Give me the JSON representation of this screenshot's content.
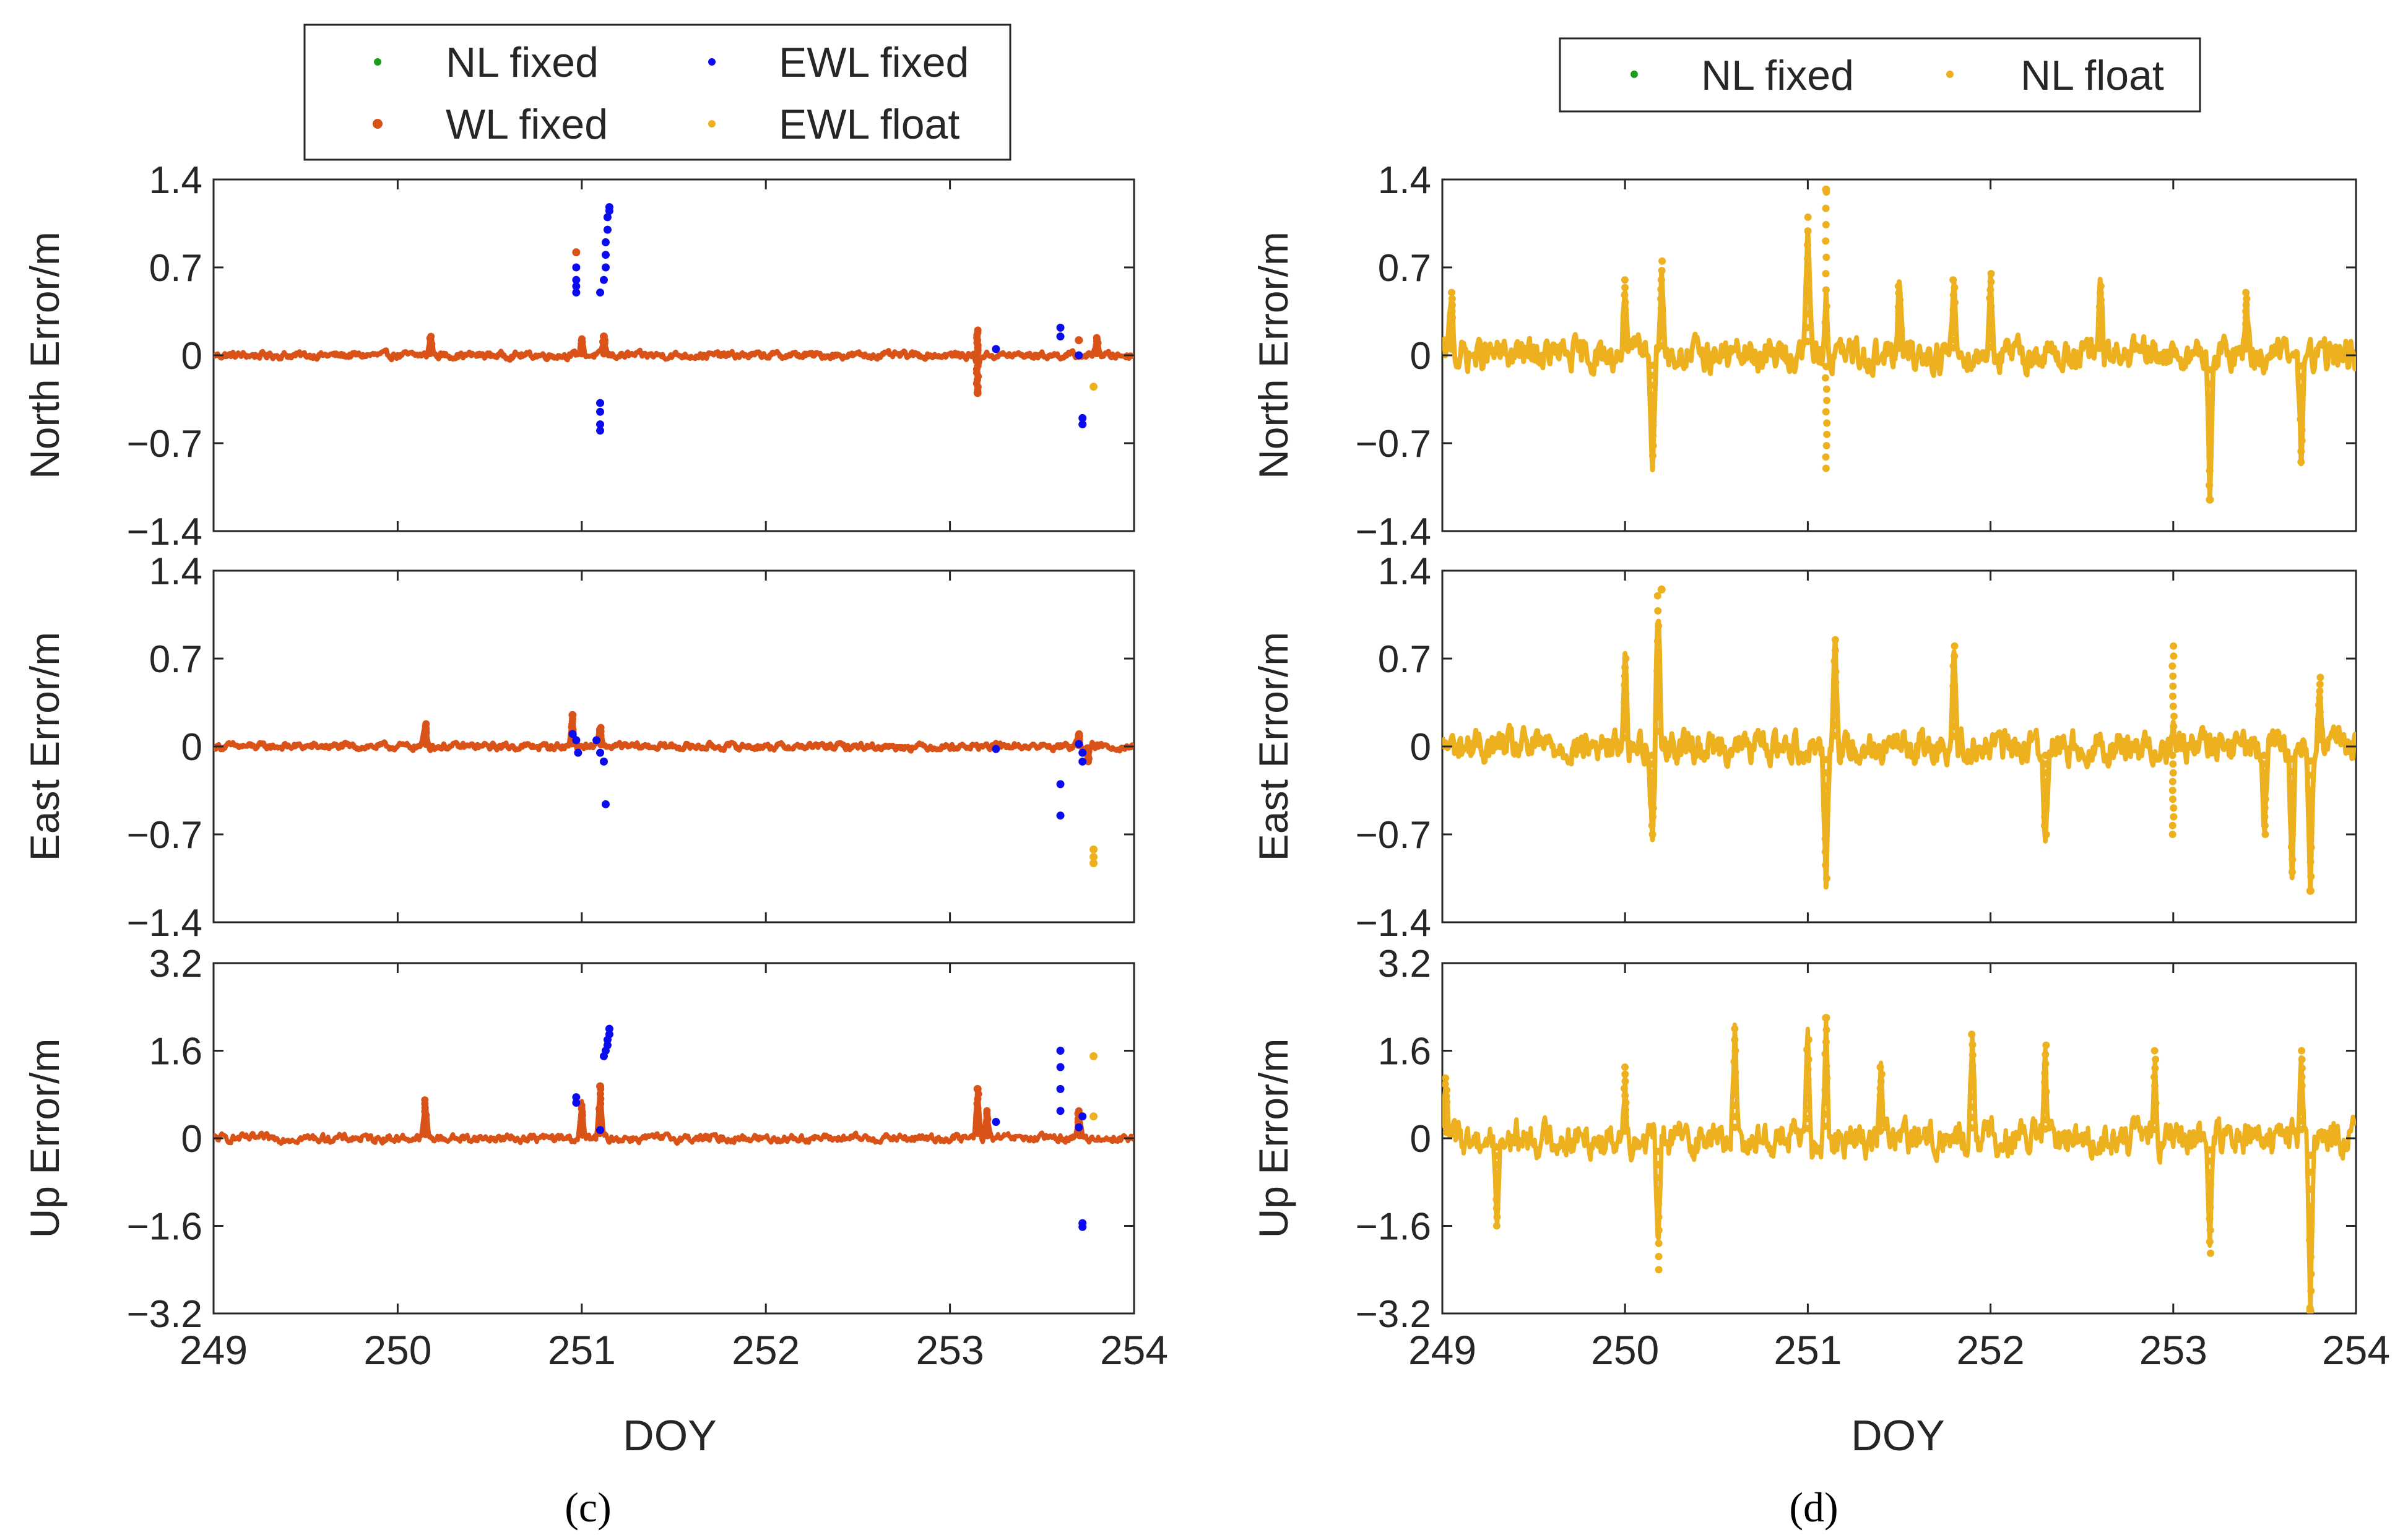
{
  "figure": {
    "xlabel": "DOY",
    "panel_labels": [
      "(c)",
      "(d)"
    ]
  },
  "colors": {
    "nl_fixed": "#1a9e1a",
    "wl_fixed": "#d95319",
    "ewl_fixed": "#0b0bf0",
    "ewl_float": "#edb120",
    "nl_float": "#edb120",
    "axis": "#262626"
  },
  "legends": [
    {
      "entries": [
        {
          "label": "NL fixed",
          "color": "#1a9e1a"
        },
        {
          "label": "EWL fixed",
          "color": "#0b0bf0"
        },
        {
          "label": "WL fixed",
          "color": "#d95319"
        },
        {
          "label": "EWL float",
          "color": "#edb120"
        }
      ]
    },
    {
      "entries": [
        {
          "label": "NL fixed",
          "color": "#1a9e1a"
        },
        {
          "label": "NL float",
          "color": "#edb120"
        }
      ]
    }
  ],
  "chart_data": [
    {
      "type": "scatter",
      "panel": "(c)",
      "title": "",
      "xlabel": "",
      "ylabel": "North Error/m",
      "xlim": [
        249,
        254
      ],
      "ylim": [
        -1.4,
        1.4
      ],
      "xticks": [
        "249",
        "250",
        "251",
        "252",
        "253",
        "254"
      ],
      "yticks": [
        "1.4",
        "0.7",
        "0",
        "−0.7",
        "−1.4"
      ],
      "base": {
        "series": "WL fixed",
        "noise": 0.022,
        "spikes": [
          [
            250.18,
            0.15
          ],
          [
            251.0,
            0.13
          ],
          [
            251.12,
            0.12
          ],
          [
            253.15,
            -0.28
          ],
          [
            253.15,
            0.2
          ],
          [
            253.8,
            0.14
          ]
        ]
      },
      "series": [
        {
          "name": "WL fixed",
          "points": [
            [
              250.97,
              0.82
            ],
            [
              251.12,
              0.15
            ],
            [
              253.15,
              -0.3
            ],
            [
              253.7,
              0.12
            ]
          ]
        },
        {
          "name": "EWL fixed",
          "points": [
            [
              250.97,
              0.5
            ],
            [
              250.97,
              0.55
            ],
            [
              250.97,
              0.6
            ],
            [
              250.97,
              0.7
            ],
            [
              251.1,
              0.5
            ],
            [
              251.12,
              0.6
            ],
            [
              251.13,
              0.7
            ],
            [
              251.13,
              0.8
            ],
            [
              251.13,
              0.9
            ],
            [
              251.14,
              1.0
            ],
            [
              251.14,
              1.1
            ],
            [
              251.15,
              1.15
            ],
            [
              251.15,
              1.18
            ],
            [
              251.1,
              -0.38
            ],
            [
              251.1,
              -0.45
            ],
            [
              251.1,
              -0.55
            ],
            [
              251.1,
              -0.6
            ],
            [
              253.25,
              0.05
            ],
            [
              253.6,
              0.15
            ],
            [
              253.6,
              0.22
            ],
            [
              253.7,
              0.0
            ],
            [
              253.72,
              -0.5
            ],
            [
              253.72,
              -0.55
            ]
          ]
        },
        {
          "name": "EWL float",
          "points": [
            [
              253.78,
              -0.25
            ]
          ]
        }
      ]
    },
    {
      "type": "scatter",
      "panel": "(c)",
      "title": "",
      "xlabel": "",
      "ylabel": "East Error/m",
      "xlim": [
        249,
        254
      ],
      "ylim": [
        -1.4,
        1.4
      ],
      "xticks": [
        "249",
        "250",
        "251",
        "252",
        "253",
        "254"
      ],
      "yticks": [
        "1.4",
        "0.7",
        "0",
        "−0.7",
        "−1.4"
      ],
      "base": {
        "series": "WL fixed",
        "noise": 0.022,
        "spikes": [
          [
            250.15,
            0.18
          ],
          [
            250.95,
            0.22
          ],
          [
            251.1,
            0.15
          ],
          [
            253.7,
            0.1
          ],
          [
            253.75,
            -0.12
          ]
        ]
      },
      "series": [
        {
          "name": "WL fixed",
          "points": [
            [
              250.95,
              0.25
            ],
            [
              251.1,
              0.12
            ]
          ]
        },
        {
          "name": "EWL fixed",
          "points": [
            [
              250.95,
              0.1
            ],
            [
              250.97,
              0.05
            ],
            [
              250.98,
              -0.05
            ],
            [
              251.08,
              0.05
            ],
            [
              251.1,
              -0.05
            ],
            [
              251.12,
              -0.12
            ],
            [
              251.13,
              -0.46
            ],
            [
              253.25,
              -0.02
            ],
            [
              253.6,
              -0.3
            ],
            [
              253.6,
              -0.55
            ],
            [
              253.7,
              0.02
            ],
            [
              253.72,
              -0.05
            ],
            [
              253.72,
              -0.12
            ]
          ]
        },
        {
          "name": "EWL float",
          "points": [
            [
              253.78,
              -0.82
            ],
            [
              253.78,
              -0.88
            ],
            [
              253.78,
              -0.93
            ]
          ]
        }
      ]
    },
    {
      "type": "scatter",
      "panel": "(c)",
      "title": "",
      "xlabel": "DOY",
      "ylabel": "Up Error/m",
      "xlim": [
        249,
        254
      ],
      "ylim": [
        -3.2,
        3.2
      ],
      "xticks": [
        "249",
        "250",
        "251",
        "252",
        "253",
        "254"
      ],
      "yticks": [
        "3.2",
        "1.6",
        "0",
        "−1.6",
        "−3.2"
      ],
      "base": {
        "series": "WL fixed",
        "noise": 0.06,
        "spikes": [
          [
            250.15,
            0.7
          ],
          [
            251.0,
            0.6
          ],
          [
            251.1,
            0.9
          ],
          [
            253.15,
            0.9
          ],
          [
            253.2,
            0.5
          ],
          [
            253.7,
            0.5
          ]
        ]
      },
      "series": [
        {
          "name": "WL fixed",
          "points": [
            [
              251.1,
              0.95
            ],
            [
              253.15,
              0.9
            ]
          ]
        },
        {
          "name": "EWL fixed",
          "points": [
            [
              250.97,
              0.75
            ],
            [
              250.97,
              0.65
            ],
            [
              251.1,
              0.15
            ],
            [
              251.12,
              1.5
            ],
            [
              251.13,
              1.6
            ],
            [
              251.14,
              1.7
            ],
            [
              251.14,
              1.8
            ],
            [
              251.15,
              1.9
            ],
            [
              251.15,
              2.0
            ],
            [
              253.25,
              0.3
            ],
            [
              253.6,
              1.6
            ],
            [
              253.6,
              1.3
            ],
            [
              253.6,
              0.9
            ],
            [
              253.6,
              0.5
            ],
            [
              253.7,
              0.2
            ],
            [
              253.72,
              0.4
            ],
            [
              253.72,
              -1.55
            ],
            [
              253.72,
              -1.62
            ]
          ]
        },
        {
          "name": "EWL float",
          "points": [
            [
              253.78,
              1.5
            ],
            [
              253.78,
              0.4
            ]
          ]
        }
      ]
    },
    {
      "type": "scatter",
      "panel": "(d)",
      "title": "",
      "xlabel": "",
      "ylabel": "North Error/m",
      "xlim": [
        249,
        254
      ],
      "ylim": [
        -1.4,
        1.4
      ],
      "xticks": [
        "249",
        "250",
        "251",
        "252",
        "253",
        "254"
      ],
      "yticks": [
        "1.4",
        "0.7",
        "0",
        "−0.7",
        "−1.4"
      ],
      "base": {
        "series": "NL float",
        "noise": 0.1,
        "spikes": [
          [
            249.05,
            0.5
          ],
          [
            250.0,
            0.6
          ],
          [
            250.15,
            -0.8
          ],
          [
            250.2,
            0.75
          ],
          [
            251.0,
            1.1
          ],
          [
            251.1,
            1.3
          ],
          [
            251.1,
            -0.9
          ],
          [
            251.5,
            0.55
          ],
          [
            251.8,
            0.6
          ],
          [
            252.0,
            0.65
          ],
          [
            252.6,
            0.55
          ],
          [
            253.2,
            -1.15
          ],
          [
            253.4,
            0.5
          ],
          [
            253.7,
            -0.85
          ]
        ]
      },
      "series": [
        {
          "name": "NL float",
          "points": [
            [
              251.1,
              1.32
            ],
            [
              253.2,
              -1.15
            ]
          ]
        }
      ]
    },
    {
      "type": "scatter",
      "panel": "(d)",
      "title": "",
      "xlabel": "",
      "ylabel": "East Error/m",
      "xlim": [
        249,
        254
      ],
      "ylim": [
        -1.4,
        1.4
      ],
      "xticks": [
        "249",
        "250",
        "251",
        "252",
        "253",
        "254"
      ],
      "yticks": [
        "1.4",
        "0.7",
        "0",
        "−0.7",
        "−1.4"
      ],
      "base": {
        "series": "NL float",
        "noise": 0.1,
        "spikes": [
          [
            250.0,
            0.7
          ],
          [
            250.18,
            1.2
          ],
          [
            250.15,
            -0.7
          ],
          [
            251.1,
            -1.05
          ],
          [
            251.15,
            0.85
          ],
          [
            251.8,
            0.8
          ],
          [
            252.3,
            -0.7
          ],
          [
            253.0,
            -0.7
          ],
          [
            253.0,
            0.8
          ],
          [
            253.5,
            -0.7
          ],
          [
            253.65,
            -1.0
          ],
          [
            253.75,
            -1.15
          ],
          [
            253.8,
            0.55
          ]
        ]
      },
      "series": [
        {
          "name": "NL float",
          "points": [
            [
              250.2,
              1.25
            ],
            [
              253.75,
              -1.15
            ]
          ]
        }
      ]
    },
    {
      "type": "scatter",
      "panel": "(d)",
      "title": "",
      "xlabel": "DOY",
      "ylabel": "Up Error/m",
      "xlim": [
        249,
        254
      ],
      "ylim": [
        -3.2,
        3.2
      ],
      "xticks": [
        "249",
        "250",
        "251",
        "252",
        "253",
        "254"
      ],
      "yticks": [
        "3.2",
        "1.6",
        "0",
        "−1.6",
        "−3.2"
      ],
      "base": {
        "series": "NL float",
        "noise": 0.25,
        "spikes": [
          [
            249.02,
            1.1
          ],
          [
            249.3,
            -1.6
          ],
          [
            250.0,
            1.3
          ],
          [
            250.18,
            -2.4
          ],
          [
            250.6,
            2.0
          ],
          [
            251.0,
            1.8
          ],
          [
            251.1,
            2.2
          ],
          [
            251.4,
            1.3
          ],
          [
            251.9,
            1.9
          ],
          [
            252.3,
            1.7
          ],
          [
            252.9,
            1.6
          ],
          [
            253.2,
            -2.1
          ],
          [
            253.7,
            1.6
          ],
          [
            253.75,
            -3.1
          ]
        ]
      },
      "series": [
        {
          "name": "NL float",
          "points": [
            [
              251.1,
              2.2
            ],
            [
              253.75,
              -3.15
            ]
          ]
        }
      ]
    }
  ]
}
